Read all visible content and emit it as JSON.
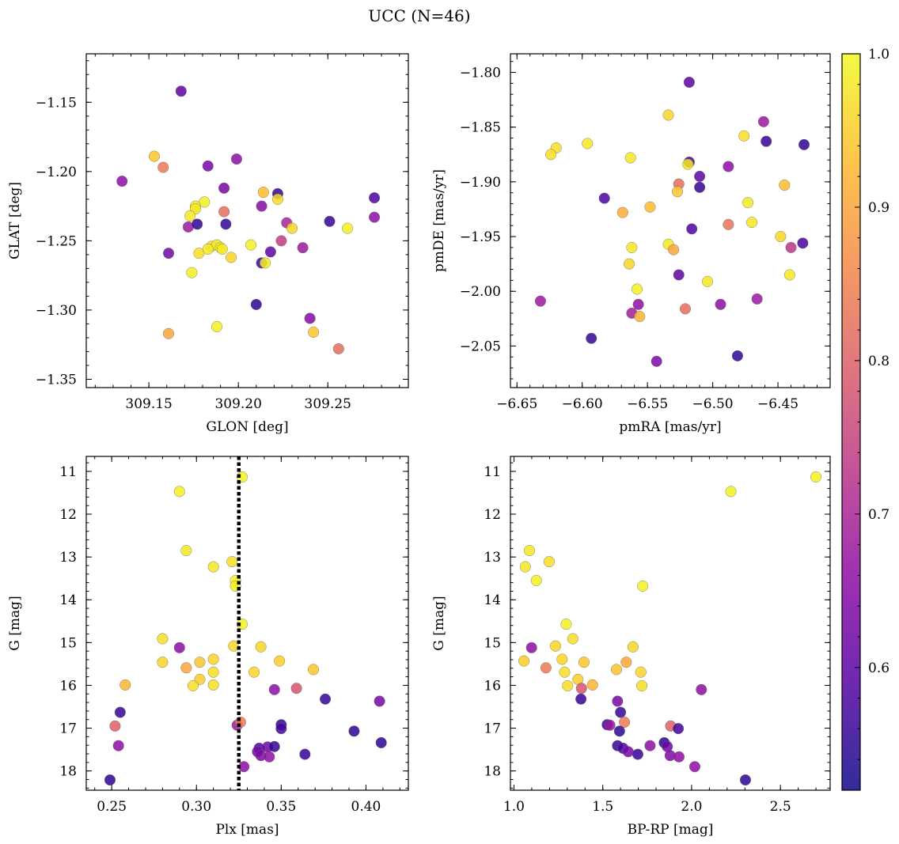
{
  "title": "UCC (N=46)",
  "colorbar": {
    "ticks": [
      "0.6",
      "0.7",
      "0.8",
      "0.9",
      "1.0"
    ],
    "tick_values": [
      0.6,
      0.7,
      0.8,
      0.9,
      1.0
    ],
    "range": [
      0.52,
      1.0
    ],
    "colormap": "plasma"
  },
  "chart_data": [
    {
      "type": "scatter",
      "xlabel": "GLON [deg]",
      "ylabel": "GLAT [deg]",
      "xlim": [
        309.115,
        309.295
      ],
      "ylim": [
        -1.356,
        -1.115
      ],
      "xticks": [
        309.15,
        309.2,
        309.25
      ],
      "xtick_labels": [
        "309.15",
        "309.20",
        "309.25"
      ],
      "yticks": [
        -1.15,
        -1.2,
        -1.25,
        -1.3,
        -1.35
      ],
      "ytick_labels": [
        "−1.15",
        "−1.20",
        "−1.25",
        "−1.30",
        "−1.35"
      ],
      "points": [
        {
          "x": 309.168,
          "y": -1.142,
          "c": 0.6
        },
        {
          "x": 309.135,
          "y": -1.207,
          "c": 0.66
        },
        {
          "x": 309.153,
          "y": -1.189,
          "c": 0.94
        },
        {
          "x": 309.158,
          "y": -1.197,
          "c": 0.84
        },
        {
          "x": 309.183,
          "y": -1.196,
          "c": 0.63
        },
        {
          "x": 309.199,
          "y": -1.191,
          "c": 0.66
        },
        {
          "x": 309.192,
          "y": -1.212,
          "c": 0.63
        },
        {
          "x": 309.214,
          "y": -1.215,
          "c": 0.93
        },
        {
          "x": 309.222,
          "y": -1.216,
          "c": 0.56
        },
        {
          "x": 309.181,
          "y": -1.222,
          "c": 0.99
        },
        {
          "x": 309.176,
          "y": -1.225,
          "c": 0.98
        },
        {
          "x": 309.176,
          "y": -1.227,
          "c": 0.98
        },
        {
          "x": 309.173,
          "y": -1.232,
          "c": 0.98
        },
        {
          "x": 309.213,
          "y": -1.225,
          "c": 0.65
        },
        {
          "x": 309.222,
          "y": -1.22,
          "c": 0.97
        },
        {
          "x": 309.192,
          "y": -1.229,
          "c": 0.82
        },
        {
          "x": 309.172,
          "y": -1.24,
          "c": 0.68
        },
        {
          "x": 309.177,
          "y": -1.238,
          "c": 0.55
        },
        {
          "x": 309.227,
          "y": -1.237,
          "c": 0.7
        },
        {
          "x": 309.23,
          "y": -1.241,
          "c": 0.96
        },
        {
          "x": 309.161,
          "y": -1.259,
          "c": 0.62
        },
        {
          "x": 309.193,
          "y": -1.238,
          "c": 0.56
        },
        {
          "x": 309.185,
          "y": -1.254,
          "c": 0.97
        },
        {
          "x": 309.188,
          "y": -1.253,
          "c": 0.98
        },
        {
          "x": 309.19,
          "y": -1.255,
          "c": 0.99
        },
        {
          "x": 309.178,
          "y": -1.259,
          "c": 0.97
        },
        {
          "x": 309.183,
          "y": -1.256,
          "c": 0.98
        },
        {
          "x": 309.191,
          "y": -1.256,
          "c": 0.98
        },
        {
          "x": 309.196,
          "y": -1.262,
          "c": 0.96
        },
        {
          "x": 309.207,
          "y": -1.253,
          "c": 0.99
        },
        {
          "x": 309.224,
          "y": -1.25,
          "c": 0.74
        },
        {
          "x": 309.218,
          "y": -1.258,
          "c": 0.6
        },
        {
          "x": 309.236,
          "y": -1.255,
          "c": 0.68
        },
        {
          "x": 309.251,
          "y": -1.236,
          "c": 0.56
        },
        {
          "x": 309.261,
          "y": -1.241,
          "c": 0.99
        },
        {
          "x": 309.276,
          "y": -1.219,
          "c": 0.58
        },
        {
          "x": 309.276,
          "y": -1.233,
          "c": 0.66
        },
        {
          "x": 309.174,
          "y": -1.273,
          "c": 0.99
        },
        {
          "x": 309.213,
          "y": -1.266,
          "c": 0.57
        },
        {
          "x": 309.215,
          "y": -1.266,
          "c": 0.99
        },
        {
          "x": 309.21,
          "y": -1.296,
          "c": 0.55
        },
        {
          "x": 309.188,
          "y": -1.312,
          "c": 0.99
        },
        {
          "x": 309.24,
          "y": -1.306,
          "c": 0.65
        },
        {
          "x": 309.242,
          "y": -1.316,
          "c": 0.94
        },
        {
          "x": 309.161,
          "y": -1.317,
          "c": 0.9
        },
        {
          "x": 309.256,
          "y": -1.328,
          "c": 0.82
        }
      ]
    },
    {
      "type": "scatter",
      "xlabel": "pmRA [mas/yr]",
      "ylabel": "pmDE [mas/yr]",
      "xlim": [
        -6.655,
        -6.41
      ],
      "ylim": [
        -2.088,
        -1.783
      ],
      "xticks": [
        -6.65,
        -6.6,
        -6.55,
        -6.5,
        -6.45
      ],
      "xtick_labels": [
        "−6.65",
        "−6.60",
        "−6.55",
        "−6.50",
        "−6.45"
      ],
      "yticks": [
        -1.8,
        -1.85,
        -1.9,
        -1.95,
        -2.0,
        -2.05
      ],
      "ytick_labels": [
        "−1.80",
        "−1.85",
        "−1.90",
        "−1.95",
        "−2.00",
        "−2.05"
      ],
      "points": [
        {
          "x": -6.518,
          "y": -1.809,
          "c": 0.6
        },
        {
          "x": -6.534,
          "y": -1.839,
          "c": 0.96
        },
        {
          "x": -6.461,
          "y": -1.845,
          "c": 0.68
        },
        {
          "x": -6.476,
          "y": -1.858,
          "c": 0.97
        },
        {
          "x": -6.459,
          "y": -1.863,
          "c": 0.56
        },
        {
          "x": -6.43,
          "y": -1.866,
          "c": 0.55
        },
        {
          "x": -6.596,
          "y": -1.865,
          "c": 0.98
        },
        {
          "x": -6.62,
          "y": -1.869,
          "c": 0.97
        },
        {
          "x": -6.624,
          "y": -1.875,
          "c": 0.97
        },
        {
          "x": -6.563,
          "y": -1.878,
          "c": 0.98
        },
        {
          "x": -6.518,
          "y": -1.882,
          "c": 0.57
        },
        {
          "x": -6.519,
          "y": -1.884,
          "c": 0.98
        },
        {
          "x": -6.488,
          "y": -1.886,
          "c": 0.66
        },
        {
          "x": -6.51,
          "y": -1.895,
          "c": 0.6
        },
        {
          "x": -6.526,
          "y": -1.902,
          "c": 0.82
        },
        {
          "x": -6.51,
          "y": -1.905,
          "c": 0.56
        },
        {
          "x": -6.445,
          "y": -1.903,
          "c": 0.93
        },
        {
          "x": -6.527,
          "y": -1.909,
          "c": 0.94
        },
        {
          "x": -6.583,
          "y": -1.915,
          "c": 0.58
        },
        {
          "x": -6.473,
          "y": -1.919,
          "c": 0.98
        },
        {
          "x": -6.548,
          "y": -1.923,
          "c": 0.93
        },
        {
          "x": -6.569,
          "y": -1.928,
          "c": 0.91
        },
        {
          "x": -6.47,
          "y": -1.937,
          "c": 0.98
        },
        {
          "x": -6.488,
          "y": -1.939,
          "c": 0.83
        },
        {
          "x": -6.516,
          "y": -1.943,
          "c": 0.58
        },
        {
          "x": -6.448,
          "y": -1.95,
          "c": 0.96
        },
        {
          "x": -6.534,
          "y": -1.957,
          "c": 0.98
        },
        {
          "x": -6.431,
          "y": -1.956,
          "c": 0.58
        },
        {
          "x": -6.562,
          "y": -1.96,
          "c": 0.98
        },
        {
          "x": -6.53,
          "y": -1.962,
          "c": 0.9
        },
        {
          "x": -6.44,
          "y": -1.96,
          "c": 0.73
        },
        {
          "x": -6.564,
          "y": -1.975,
          "c": 0.96
        },
        {
          "x": -6.526,
          "y": -1.985,
          "c": 0.6
        },
        {
          "x": -6.441,
          "y": -1.985,
          "c": 0.98
        },
        {
          "x": -6.504,
          "y": -1.991,
          "c": 0.98
        },
        {
          "x": -6.558,
          "y": -1.998,
          "c": 0.99
        },
        {
          "x": -6.632,
          "y": -2.009,
          "c": 0.68
        },
        {
          "x": -6.466,
          "y": -2.007,
          "c": 0.68
        },
        {
          "x": -6.557,
          "y": -2.012,
          "c": 0.66
        },
        {
          "x": -6.494,
          "y": -2.012,
          "c": 0.66
        },
        {
          "x": -6.521,
          "y": -2.016,
          "c": 0.82
        },
        {
          "x": -6.562,
          "y": -2.02,
          "c": 0.69
        },
        {
          "x": -6.556,
          "y": -2.023,
          "c": 0.92
        },
        {
          "x": -6.593,
          "y": -2.043,
          "c": 0.56
        },
        {
          "x": -6.481,
          "y": -2.059,
          "c": 0.55
        },
        {
          "x": -6.543,
          "y": -2.064,
          "c": 0.64
        }
      ]
    },
    {
      "type": "scatter",
      "xlabel": "Plx [mas]",
      "ylabel": "G [mag]",
      "xlim": [
        0.235,
        0.425
      ],
      "ylim": [
        18.45,
        10.65
      ],
      "xticks": [
        0.25,
        0.3,
        0.35,
        0.4
      ],
      "xtick_labels": [
        "0.25",
        "0.30",
        "0.35",
        "0.40"
      ],
      "yticks": [
        11,
        12,
        13,
        14,
        15,
        16,
        17,
        18
      ],
      "ytick_labels": [
        "11",
        "12",
        "13",
        "14",
        "15",
        "16",
        "17",
        "18"
      ],
      "vline": 0.325,
      "points": [
        {
          "x": 0.327,
          "y": 11.13,
          "c": 0.99
        },
        {
          "x": 0.29,
          "y": 11.47,
          "c": 0.99
        },
        {
          "x": 0.294,
          "y": 12.85,
          "c": 0.98
        },
        {
          "x": 0.321,
          "y": 13.11,
          "c": 0.97
        },
        {
          "x": 0.31,
          "y": 13.23,
          "c": 0.98
        },
        {
          "x": 0.323,
          "y": 13.55,
          "c": 0.99
        },
        {
          "x": 0.323,
          "y": 13.68,
          "c": 0.99
        },
        {
          "x": 0.327,
          "y": 14.57,
          "c": 0.99
        },
        {
          "x": 0.28,
          "y": 14.91,
          "c": 0.97
        },
        {
          "x": 0.29,
          "y": 15.12,
          "c": 0.66
        },
        {
          "x": 0.322,
          "y": 15.08,
          "c": 0.96
        },
        {
          "x": 0.338,
          "y": 15.1,
          "c": 0.96
        },
        {
          "x": 0.28,
          "y": 15.46,
          "c": 0.96
        },
        {
          "x": 0.302,
          "y": 15.46,
          "c": 0.94
        },
        {
          "x": 0.31,
          "y": 15.39,
          "c": 0.96
        },
        {
          "x": 0.349,
          "y": 15.43,
          "c": 0.95
        },
        {
          "x": 0.294,
          "y": 15.59,
          "c": 0.9
        },
        {
          "x": 0.31,
          "y": 15.69,
          "c": 0.97
        },
        {
          "x": 0.334,
          "y": 15.69,
          "c": 0.96
        },
        {
          "x": 0.369,
          "y": 15.63,
          "c": 0.94
        },
        {
          "x": 0.302,
          "y": 15.86,
          "c": 0.95
        },
        {
          "x": 0.258,
          "y": 15.99,
          "c": 0.92
        },
        {
          "x": 0.298,
          "y": 16.01,
          "c": 0.97
        },
        {
          "x": 0.31,
          "y": 15.99,
          "c": 0.97
        },
        {
          "x": 0.359,
          "y": 16.07,
          "c": 0.78
        },
        {
          "x": 0.346,
          "y": 16.1,
          "c": 0.66
        },
        {
          "x": 0.376,
          "y": 16.32,
          "c": 0.56
        },
        {
          "x": 0.408,
          "y": 16.37,
          "c": 0.63
        },
        {
          "x": 0.255,
          "y": 16.63,
          "c": 0.56
        },
        {
          "x": 0.252,
          "y": 16.95,
          "c": 0.8
        },
        {
          "x": 0.324,
          "y": 16.93,
          "c": 0.68
        },
        {
          "x": 0.326,
          "y": 16.86,
          "c": 0.84
        },
        {
          "x": 0.35,
          "y": 16.92,
          "c": 0.56
        },
        {
          "x": 0.35,
          "y": 17.01,
          "c": 0.57
        },
        {
          "x": 0.393,
          "y": 17.07,
          "c": 0.55
        },
        {
          "x": 0.409,
          "y": 17.34,
          "c": 0.55
        },
        {
          "x": 0.254,
          "y": 17.41,
          "c": 0.66
        },
        {
          "x": 0.337,
          "y": 17.47,
          "c": 0.58
        },
        {
          "x": 0.342,
          "y": 17.44,
          "c": 0.62
        },
        {
          "x": 0.346,
          "y": 17.43,
          "c": 0.56
        },
        {
          "x": 0.336,
          "y": 17.55,
          "c": 0.63
        },
        {
          "x": 0.338,
          "y": 17.64,
          "c": 0.64
        },
        {
          "x": 0.343,
          "y": 17.67,
          "c": 0.66
        },
        {
          "x": 0.364,
          "y": 17.61,
          "c": 0.56
        },
        {
          "x": 0.328,
          "y": 17.9,
          "c": 0.66
        },
        {
          "x": 0.249,
          "y": 18.21,
          "c": 0.55
        }
      ]
    },
    {
      "type": "scatter",
      "xlabel": "BP-RP [mag]",
      "ylabel": "G [mag]",
      "xlim": [
        0.98,
        2.78
      ],
      "ylim": [
        18.45,
        10.65
      ],
      "xticks": [
        1.0,
        1.5,
        2.0,
        2.5
      ],
      "xtick_labels": [
        "1.0",
        "1.5",
        "2.0",
        "2.5"
      ],
      "yticks": [
        11,
        12,
        13,
        14,
        15,
        16,
        17,
        18
      ],
      "ytick_labels": [
        "11",
        "12",
        "13",
        "14",
        "15",
        "16",
        "17",
        "18"
      ],
      "points": [
        {
          "x": 2.7,
          "y": 11.13,
          "c": 0.99
        },
        {
          "x": 2.221,
          "y": 11.47,
          "c": 0.99
        },
        {
          "x": 1.087,
          "y": 12.85,
          "c": 0.98
        },
        {
          "x": 1.198,
          "y": 13.11,
          "c": 0.97
        },
        {
          "x": 1.064,
          "y": 13.23,
          "c": 0.98
        },
        {
          "x": 1.126,
          "y": 13.55,
          "c": 0.99
        },
        {
          "x": 1.725,
          "y": 13.68,
          "c": 0.99
        },
        {
          "x": 1.294,
          "y": 14.57,
          "c": 0.99
        },
        {
          "x": 1.331,
          "y": 14.91,
          "c": 0.97
        },
        {
          "x": 1.099,
          "y": 15.12,
          "c": 0.66
        },
        {
          "x": 1.234,
          "y": 15.08,
          "c": 0.96
        },
        {
          "x": 1.67,
          "y": 15.1,
          "c": 0.96
        },
        {
          "x": 1.056,
          "y": 15.43,
          "c": 0.95
        },
        {
          "x": 1.271,
          "y": 15.39,
          "c": 0.96
        },
        {
          "x": 1.394,
          "y": 15.46,
          "c": 0.94
        },
        {
          "x": 1.632,
          "y": 15.46,
          "c": 0.9
        },
        {
          "x": 1.18,
          "y": 15.59,
          "c": 0.84
        },
        {
          "x": 1.285,
          "y": 15.69,
          "c": 0.97
        },
        {
          "x": 1.577,
          "y": 15.63,
          "c": 0.94
        },
        {
          "x": 1.714,
          "y": 15.69,
          "c": 0.96
        },
        {
          "x": 1.36,
          "y": 15.86,
          "c": 0.95
        },
        {
          "x": 1.302,
          "y": 16.01,
          "c": 0.97
        },
        {
          "x": 1.442,
          "y": 15.99,
          "c": 0.92
        },
        {
          "x": 1.72,
          "y": 16.01,
          "c": 0.97
        },
        {
          "x": 1.38,
          "y": 16.07,
          "c": 0.78
        },
        {
          "x": 2.055,
          "y": 16.1,
          "c": 0.66
        },
        {
          "x": 1.377,
          "y": 16.32,
          "c": 0.56
        },
        {
          "x": 1.583,
          "y": 16.37,
          "c": 0.63
        },
        {
          "x": 1.6,
          "y": 16.63,
          "c": 0.56
        },
        {
          "x": 1.622,
          "y": 16.86,
          "c": 0.84
        },
        {
          "x": 1.525,
          "y": 16.92,
          "c": 0.56
        },
        {
          "x": 1.54,
          "y": 16.93,
          "c": 0.68
        },
        {
          "x": 1.882,
          "y": 16.95,
          "c": 0.8
        },
        {
          "x": 1.925,
          "y": 17.01,
          "c": 0.57
        },
        {
          "x": 1.594,
          "y": 17.07,
          "c": 0.55
        },
        {
          "x": 1.846,
          "y": 17.34,
          "c": 0.55
        },
        {
          "x": 1.583,
          "y": 17.41,
          "c": 0.56
        },
        {
          "x": 1.766,
          "y": 17.41,
          "c": 0.66
        },
        {
          "x": 1.863,
          "y": 17.43,
          "c": 0.62
        },
        {
          "x": 1.614,
          "y": 17.47,
          "c": 0.58
        },
        {
          "x": 1.643,
          "y": 17.55,
          "c": 0.63
        },
        {
          "x": 1.697,
          "y": 17.61,
          "c": 0.56
        },
        {
          "x": 1.879,
          "y": 17.64,
          "c": 0.64
        },
        {
          "x": 1.929,
          "y": 17.67,
          "c": 0.66
        },
        {
          "x": 2.018,
          "y": 17.9,
          "c": 0.66
        },
        {
          "x": 2.303,
          "y": 18.21,
          "c": 0.55
        }
      ]
    }
  ]
}
